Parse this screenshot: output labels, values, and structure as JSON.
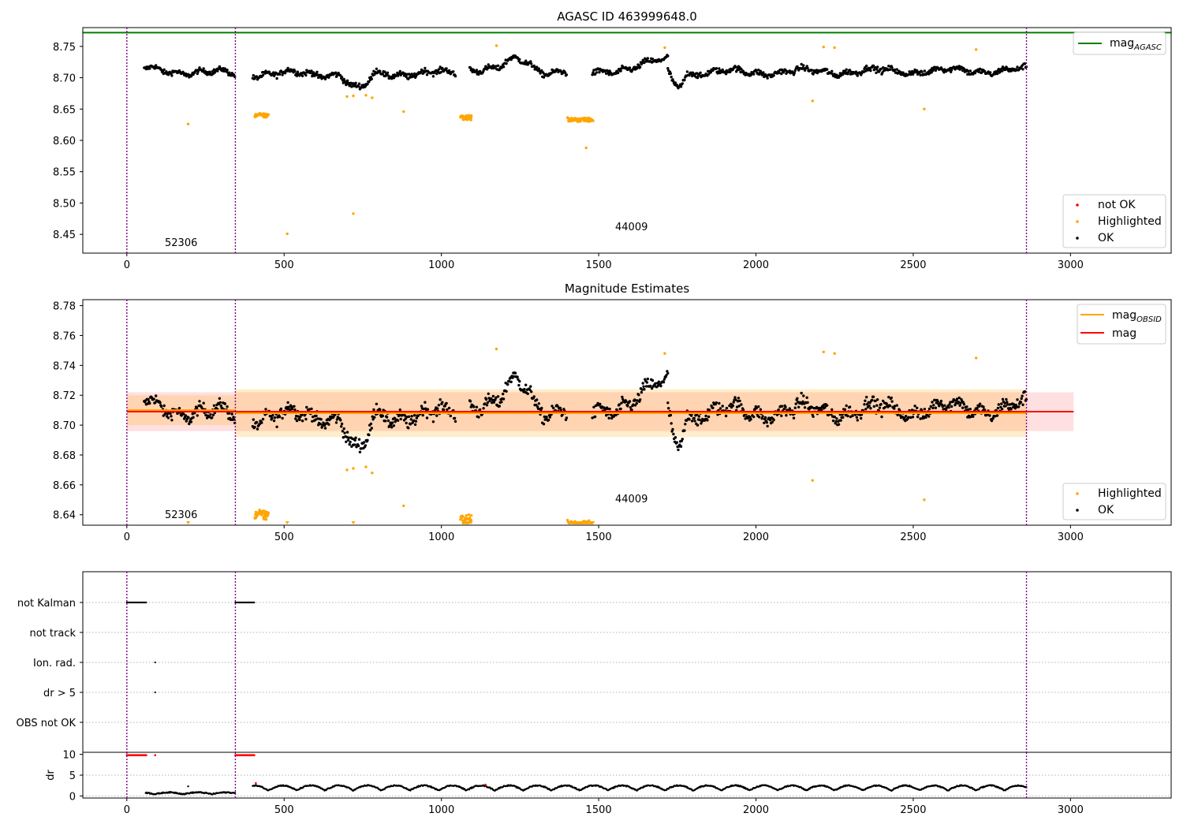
{
  "chart_data": [
    {
      "type": "scatter",
      "title": "AGASC ID 463999648.0",
      "xlim": [
        -140,
        3320
      ],
      "ylim": [
        8.42,
        8.78
      ],
      "xticks": [
        0,
        500,
        1000,
        1500,
        2000,
        2500,
        3000
      ],
      "yticks": [
        8.45,
        8.5,
        8.55,
        8.6,
        8.65,
        8.7,
        8.75
      ],
      "ytick_labels": [
        "8.45",
        "8.50",
        "8.55",
        "8.60",
        "8.65",
        "8.70",
        "8.75"
      ],
      "xtick_labels": [
        "0",
        "500",
        "1000",
        "1500",
        "2000",
        "2500",
        "3000"
      ],
      "vlines": [
        0,
        345,
        2860
      ],
      "hline_mag_agasc": 8.772,
      "annotations": [
        {
          "text": "52306",
          "x": 170,
          "y": 8.436
        },
        {
          "text": "44009",
          "x": 1600,
          "y": 8.461
        }
      ],
      "legend_top": [
        {
          "name": "mag",
          "sub": "AGASC",
          "color": "#008000"
        }
      ],
      "legend_bottom": [
        {
          "name": "not OK",
          "color": "#ff0000"
        },
        {
          "name": "Highlighted",
          "color": "#ffa500"
        },
        {
          "name": "OK",
          "color": "#000000"
        }
      ],
      "segments": [
        {
          "x0": 55,
          "x1": 345,
          "y0": 8.713,
          "y1": 8.706,
          "noise": 0.007
        },
        {
          "x0": 400,
          "x1": 1045,
          "y0": 8.706,
          "y1": 8.707,
          "noise": 0.008,
          "dip": {
            "x0": 680,
            "x1": 790,
            "depth": 0.025
          }
        },
        {
          "x0": 1090,
          "x1": 1400,
          "y0": 8.716,
          "y1": 8.71,
          "noise": 0.008,
          "bump": {
            "x0": 1180,
            "x1": 1310,
            "height": 0.014
          }
        },
        {
          "x0": 1480,
          "x1": 1720,
          "y0": 8.706,
          "y1": 8.728,
          "noise": 0.008
        },
        {
          "x0": 1720,
          "x1": 2860,
          "y0": 8.708,
          "y1": 8.712,
          "noise": 0.008,
          "dip": {
            "x0": 1720,
            "x1": 1780,
            "depth": 0.02
          }
        }
      ],
      "highlighted_clusters": [
        {
          "x0": 405,
          "x1": 450,
          "y": 8.64,
          "spread": 0.006
        },
        {
          "x0": 1060,
          "x1": 1095,
          "y": 8.637,
          "spread": 0.008
        },
        {
          "x0": 1400,
          "x1": 1480,
          "y": 8.633,
          "spread": 0.006
        }
      ],
      "highlighted_points": [
        [
          195,
          8.626
        ],
        [
          510,
          8.451
        ],
        [
          720,
          8.483
        ],
        [
          880,
          8.646
        ],
        [
          1175,
          8.751
        ],
        [
          1460,
          8.588
        ],
        [
          1710,
          8.748
        ],
        [
          2180,
          8.663
        ],
        [
          2215,
          8.749
        ],
        [
          2250,
          8.748
        ],
        [
          2535,
          8.65
        ],
        [
          2700,
          8.745
        ],
        [
          720,
          8.671
        ],
        [
          760,
          8.672
        ],
        [
          780,
          8.668
        ],
        [
          700,
          8.67
        ]
      ]
    },
    {
      "type": "scatter",
      "title": "Magnitude Estimates",
      "xlim": [
        -140,
        3320
      ],
      "ylim": [
        8.633,
        8.784
      ],
      "xticks": [
        0,
        500,
        1000,
        1500,
        2000,
        2500,
        3000
      ],
      "xtick_labels": [
        "0",
        "500",
        "1000",
        "1500",
        "2000",
        "2500",
        "3000"
      ],
      "yticks": [
        8.64,
        8.66,
        8.68,
        8.7,
        8.72,
        8.74,
        8.76,
        8.78
      ],
      "ytick_labels": [
        "8.64",
        "8.66",
        "8.68",
        "8.70",
        "8.72",
        "8.74",
        "8.76",
        "8.78"
      ],
      "vlines": [
        0,
        345,
        2860
      ],
      "mag_line": 8.709,
      "mag_band": [
        8.696,
        8.722
      ],
      "band_x": [
        0,
        3010
      ],
      "obsid_lines": [
        {
          "x0": 0,
          "x1": 345,
          "y": 8.71,
          "band": [
            8.7,
            8.72
          ]
        },
        {
          "x0": 345,
          "x1": 2860,
          "y": 8.708,
          "band": [
            8.692,
            8.724
          ]
        }
      ],
      "annotations": [
        {
          "text": "52306",
          "x": 170,
          "y": 8.637
        },
        {
          "text": "44009",
          "x": 1600,
          "y": 8.648
        }
      ],
      "legend_top": [
        {
          "name": "mag",
          "sub": "OBSID",
          "color": "#ffa500"
        },
        {
          "name": "mag",
          "sub": "",
          "color": "#ff0000"
        }
      ],
      "legend_bottom": [
        {
          "name": "Highlighted",
          "color": "#ffa500"
        },
        {
          "name": "OK",
          "color": "#000000"
        }
      ]
    },
    {
      "type": "scatter",
      "categories": [
        "not Kalman",
        "not track",
        "Ion. rad.",
        "dr > 5",
        "OBS not OK"
      ],
      "xlim": [
        -140,
        3320
      ],
      "xticks": [
        0,
        500,
        1000,
        1500,
        2000,
        2500,
        3000
      ],
      "xtick_labels": [
        "0",
        "500",
        "1000",
        "1500",
        "2000",
        "2500",
        "3000"
      ],
      "vlines": [
        0,
        345,
        2860
      ],
      "flags": {
        "not Kalman": [
          [
            0,
            62
          ],
          [
            345,
            405
          ]
        ],
        "Ion. rad.": [
          [
            90,
            90
          ]
        ],
        "dr > 5": [
          [
            90,
            90
          ]
        ]
      }
    },
    {
      "type": "scatter",
      "ylabel": "dr",
      "ylim": [
        -0.5,
        10.5
      ],
      "yticks": [
        0,
        5,
        10
      ],
      "ytick_labels": [
        "0",
        "5",
        "10"
      ],
      "xlim": [
        -140,
        3320
      ],
      "xticks": [
        0,
        500,
        1000,
        1500,
        2000,
        2500,
        3000
      ],
      "xtick_labels": [
        "0",
        "500",
        "1000",
        "1500",
        "2000",
        "2500",
        "3000"
      ],
      "vlines": [
        0,
        345,
        2860
      ],
      "clipped_red": [
        [
          0,
          62
        ],
        [
          345,
          405
        ],
        [
          90,
          90
        ]
      ]
    }
  ]
}
